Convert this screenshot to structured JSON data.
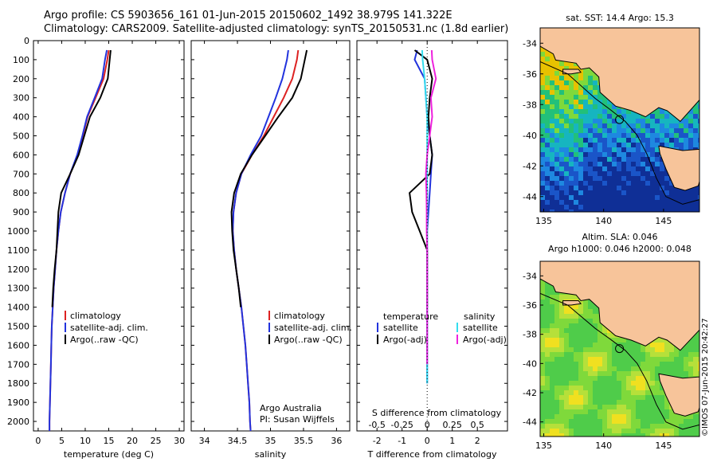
{
  "header": {
    "line1": "Argo profile: CS 5903656_161 01-Jun-2015 20150602_1492 38.979S 141.322E",
    "line2": "Climatology: CARS2009. Satellite-adjusted climatology: synTS_20150531.nc (1.8d earlier)"
  },
  "stamp": "©IMOS 07-Jun-2015 20:42:27",
  "colors": {
    "climatology": "#dd2222",
    "satellite": "#2233dd",
    "argo": "#000000",
    "sal_satellite": "#33ddee",
    "sal_argo": "#ee22dd",
    "land": "#f7c49a"
  },
  "chart_data": [
    {
      "type": "line",
      "panel": "temperature",
      "xlabel": "temperature (deg C)",
      "ylabel": "",
      "xlim": [
        -1,
        31
      ],
      "ylim": [
        2050,
        0
      ],
      "xticks": [
        "0",
        "5",
        "10",
        "15",
        "20",
        "25",
        "30"
      ],
      "yticks": [
        "0",
        "100",
        "200",
        "300",
        "400",
        "500",
        "600",
        "700",
        "800",
        "900",
        "1000",
        "1100",
        "1200",
        "1300",
        "1400",
        "1500",
        "1600",
        "1700",
        "1800",
        "1900",
        "2000"
      ],
      "legend": [
        "climatology",
        "satellite-adj. clim.",
        "Argo(..raw -QC)"
      ],
      "series": [
        {
          "name": "climatology",
          "x": [
            15.0,
            14.7,
            13.9,
            12.2,
            10.5,
            9.5,
            8.4,
            6.8,
            5.7,
            4.8,
            4.3,
            3.9,
            3.6,
            3.3,
            3.1,
            2.9,
            2.8,
            2.7,
            2.6,
            2.5,
            2.4,
            2.4
          ],
          "y": [
            50,
            100,
            200,
            300,
            400,
            500,
            600,
            700,
            800,
            900,
            1000,
            1100,
            1200,
            1300,
            1400,
            1500,
            1600,
            1700,
            1800,
            1900,
            2000,
            2050
          ]
        },
        {
          "name": "satellite-adj. clim.",
          "x": [
            14.6,
            14.2,
            13.6,
            12.0,
            10.4,
            9.4,
            8.3,
            6.8,
            5.7,
            4.8,
            4.3,
            3.9,
            3.6,
            3.3,
            3.1,
            2.9,
            2.8,
            2.7,
            2.6,
            2.5,
            2.4,
            2.4
          ],
          "y": [
            50,
            100,
            200,
            300,
            400,
            500,
            600,
            700,
            800,
            900,
            1000,
            1100,
            1200,
            1300,
            1400,
            1500,
            1600,
            1700,
            1800,
            1900,
            2000,
            2050
          ]
        },
        {
          "name": "Argo(..raw -QC)",
          "x": [
            15.4,
            15.2,
            14.8,
            13.2,
            11.0,
            9.8,
            8.6,
            6.8,
            4.9,
            4.3,
            4.1,
            3.9,
            3.5,
            3.2,
            3.0
          ],
          "y": [
            50,
            100,
            200,
            300,
            400,
            500,
            600,
            700,
            800,
            900,
            1000,
            1100,
            1200,
            1300,
            1400
          ]
        }
      ]
    },
    {
      "type": "line",
      "panel": "salinity",
      "xlabel": "salinity",
      "xlim": [
        33.8,
        36.2
      ],
      "ylim": [
        2050,
        0
      ],
      "xticks": [
        "34",
        "34.5",
        "35",
        "35.5",
        "36"
      ],
      "legend": [
        "climatology",
        "satellite-adj. clim.",
        "Argo(..raw -QC)"
      ],
      "annotation": [
        "Argo Australia",
        "PI: Susan Wijffels"
      ],
      "series": [
        {
          "name": "climatology",
          "x": [
            35.42,
            35.4,
            35.33,
            35.2,
            35.05,
            34.9,
            34.72,
            34.56,
            34.48,
            34.44,
            34.43,
            34.45,
            34.48,
            34.52,
            34.56,
            34.59,
            34.62,
            34.64,
            34.66,
            34.68,
            34.69,
            34.7
          ],
          "y": [
            50,
            100,
            200,
            300,
            400,
            500,
            600,
            700,
            800,
            900,
            1000,
            1100,
            1200,
            1300,
            1400,
            1500,
            1600,
            1700,
            1800,
            1900,
            2000,
            2050
          ]
        },
        {
          "name": "satellite-adj. clim.",
          "x": [
            35.27,
            35.25,
            35.18,
            35.08,
            34.97,
            34.86,
            34.7,
            34.56,
            34.48,
            34.44,
            34.43,
            34.45,
            34.48,
            34.52,
            34.56,
            34.59,
            34.62,
            34.64,
            34.66,
            34.68,
            34.69,
            34.7
          ],
          "y": [
            50,
            100,
            200,
            300,
            400,
            500,
            600,
            700,
            800,
            900,
            1000,
            1100,
            1200,
            1300,
            1400,
            1500,
            1600,
            1700,
            1800,
            1900,
            2000,
            2050
          ]
        },
        {
          "name": "Argo(..raw -QC)",
          "x": [
            35.55,
            35.52,
            35.46,
            35.33,
            35.12,
            34.92,
            34.72,
            34.55,
            34.45,
            34.41,
            34.42,
            34.44,
            34.48,
            34.52,
            34.55
          ],
          "y": [
            50,
            100,
            200,
            300,
            400,
            500,
            600,
            700,
            800,
            900,
            1000,
            1100,
            1200,
            1300,
            1400
          ]
        }
      ]
    },
    {
      "type": "line",
      "panel": "difference",
      "xlabel": "T difference from climatology",
      "xlabel2": "S difference from climatology",
      "xlim": [
        -2.8,
        3.2
      ],
      "ylim": [
        2050,
        0
      ],
      "xticks": [
        "-2",
        "-1",
        "0",
        "1",
        "2"
      ],
      "xticks2": [
        "-0.5",
        "-0.25",
        "0",
        "0.25",
        "0.5"
      ],
      "legend_temperature": {
        "title": "temperature",
        "entries": [
          "satellite",
          "Argo(-adj)"
        ]
      },
      "legend_salinity": {
        "title": "salinity",
        "entries": [
          "satellite",
          "Argo(-adj)"
        ]
      },
      "series": [
        {
          "name": "temperature satellite",
          "x": [
            -0.4,
            -0.5,
            -0.1,
            -0.05,
            0.0,
            0.1,
            0.2,
            0.15,
            0.1,
            0.05,
            0.0,
            0.0,
            0.0,
            0.0,
            0.0,
            0.0,
            0.0,
            0.0,
            0.0
          ],
          "y": [
            50,
            100,
            200,
            300,
            400,
            500,
            600,
            700,
            800,
            900,
            1000,
            1100,
            1200,
            1300,
            1400,
            1500,
            1600,
            1700,
            1800
          ]
        },
        {
          "name": "temperature Argo(-adj)",
          "x": [
            -0.5,
            0.0,
            0.2,
            0.1,
            0.05,
            0.1,
            0.2,
            0.1,
            -0.7,
            -0.6,
            -0.3,
            0.0,
            0.0,
            0.0,
            0.0
          ],
          "y": [
            50,
            100,
            200,
            300,
            400,
            500,
            600,
            700,
            800,
            900,
            1000,
            1100,
            1200,
            1300,
            1400
          ]
        },
        {
          "name": "salinity satellite",
          "x": [
            -0.2,
            -0.18,
            -0.1,
            -0.05,
            0.0,
            0.0,
            0.0,
            0.0,
            0.0,
            0.0,
            0.0,
            0.0,
            0.0,
            0.0,
            0.0,
            0.0,
            0.0,
            0.0,
            0.0
          ],
          "y": [
            50,
            100,
            200,
            300,
            400,
            500,
            600,
            700,
            800,
            900,
            1000,
            1100,
            1200,
            1300,
            1400,
            1500,
            1600,
            1700,
            1800
          ]
        },
        {
          "name": "salinity Argo(-adj)",
          "x": [
            0.18,
            0.2,
            0.35,
            0.15,
            0.2,
            0.1,
            0.0,
            -0.05,
            -0.03,
            -0.02,
            -0.02,
            0.0,
            0.0,
            0.0,
            0.0,
            0.0,
            0.0,
            0.0
          ],
          "y": [
            50,
            100,
            200,
            300,
            400,
            500,
            600,
            700,
            800,
            900,
            1000,
            1100,
            1200,
            1300,
            1400,
            1500,
            1600,
            1700
          ]
        }
      ]
    },
    {
      "type": "heatmap",
      "panel": "sst-map",
      "title": "sat. SST: 14.4  Argo: 15.3",
      "xlim": [
        134.7,
        148.0
      ],
      "ylim": [
        -45.0,
        -33.0
      ],
      "xticks": [
        "135",
        "140",
        "145"
      ],
      "yticks": [
        "-34",
        "-36",
        "-38",
        "-40",
        "-42",
        "-44"
      ],
      "argo_position": [
        141.322,
        -38.979
      ]
    },
    {
      "type": "heatmap",
      "panel": "sla-map",
      "title": "Altim. SLA: 0.046",
      "title2": "Argo h1000: 0.046 h2000: 0.048",
      "xlim": [
        134.7,
        148.0
      ],
      "ylim": [
        -45.0,
        -33.0
      ],
      "xticks": [
        "135",
        "140",
        "145"
      ],
      "yticks": [
        "-34",
        "-36",
        "-38",
        "-40",
        "-42",
        "-44"
      ],
      "argo_position": [
        141.322,
        -38.979
      ]
    }
  ]
}
